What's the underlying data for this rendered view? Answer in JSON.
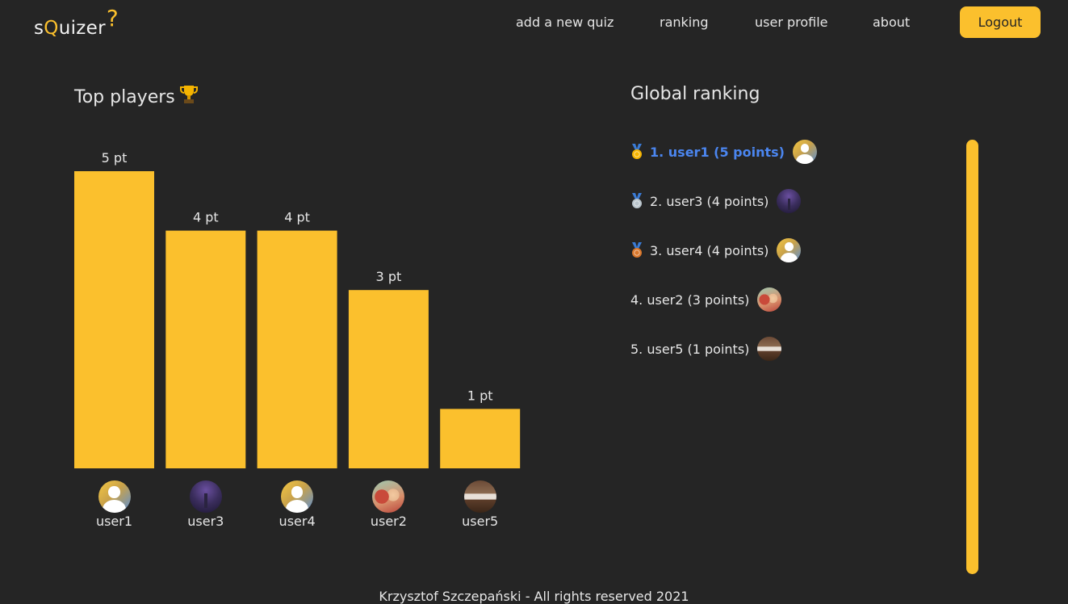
{
  "app": {
    "logo_prefix": "s",
    "logo_q": "Q",
    "logo_rest": "uizer",
    "logo_mark": "?"
  },
  "nav": {
    "items": [
      {
        "label": "add a new quiz"
      },
      {
        "label": "ranking"
      },
      {
        "label": "user profile"
      },
      {
        "label": "about"
      }
    ],
    "logout_label": "Logout"
  },
  "top_players": {
    "title": "Top players",
    "icon": "trophy-icon"
  },
  "chart_data": {
    "type": "bar",
    "categories": [
      "user1",
      "user3",
      "user4",
      "user2",
      "user5"
    ],
    "values": [
      5,
      4,
      4,
      3,
      1
    ],
    "data_labels": [
      "5 pt",
      "4 pt",
      "4 pt",
      "3 pt",
      "1 pt"
    ],
    "avatars": [
      "default",
      "night",
      "default",
      "people",
      "room"
    ],
    "ylim": [
      0,
      5
    ],
    "grid": false,
    "color": "#fbc02d"
  },
  "global_ranking": {
    "title": "Global ranking",
    "items": [
      {
        "text": "1. user1 (5 points)",
        "medal": "gold-medal-icon",
        "avatar": "default"
      },
      {
        "text": "2. user3 (4 points)",
        "medal": "silver-medal-icon",
        "avatar": "night"
      },
      {
        "text": "3. user4 (4 points)",
        "medal": "bronze-medal-icon",
        "avatar": "default"
      },
      {
        "text": "4. user2 (3 points)",
        "medal": "",
        "avatar": "people"
      },
      {
        "text": "5. user5 (1 points)",
        "medal": "",
        "avatar": "room"
      }
    ]
  },
  "colors": {
    "background": "#252525",
    "accent": "#fbc02d",
    "highlight": "#4b86f0"
  },
  "footer": {
    "text": "Krzysztof Szczepański - All rights reserved 2021"
  }
}
